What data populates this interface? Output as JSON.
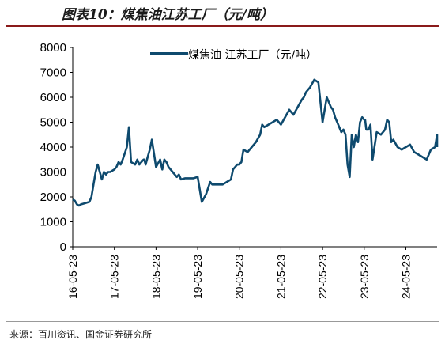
{
  "figure_title": "图表10：煤焦油江苏工厂（元/吨）",
  "source": "来源：百川资讯、国金证券研究所",
  "colors": {
    "line": "#0e4a6e",
    "rule": "#8a1a1a"
  },
  "chart_data": {
    "type": "line",
    "title": "",
    "xlabel": "",
    "ylabel": "",
    "ylim": [
      0,
      8000
    ],
    "yticks": [
      0,
      1000,
      2000,
      3000,
      4000,
      5000,
      6000,
      7000,
      8000
    ],
    "xticks": [
      "16-05-23",
      "17-05-23",
      "18-05-23",
      "19-05-23",
      "20-05-23",
      "21-05-23",
      "22-05-23",
      "23-05-23",
      "24-05-23"
    ],
    "grid": false,
    "legend": "top",
    "series": [
      {
        "name": "煤焦油 江苏工厂（元/吨）",
        "x": [
          2016.0,
          2016.05,
          2016.1,
          2016.15,
          2016.2,
          2016.3,
          2016.4,
          2016.45,
          2016.5,
          2016.55,
          2016.6,
          2016.7,
          2016.75,
          2016.8,
          2016.85,
          2016.9,
          2017.0,
          2017.05,
          2017.1,
          2017.15,
          2017.2,
          2017.3,
          2017.35,
          2017.4,
          2017.5,
          2017.55,
          2017.6,
          2017.65,
          2017.7,
          2017.72,
          2017.75,
          2017.8,
          2017.85,
          2017.9,
          2018.0,
          2018.1,
          2018.15,
          2018.2,
          2018.25,
          2018.3,
          2018.35,
          2018.4,
          2018.45,
          2018.5,
          2018.55,
          2018.6,
          2018.7,
          2018.8,
          2018.9,
          2019.0,
          2019.1,
          2019.2,
          2019.3,
          2019.35,
          2019.4,
          2019.5,
          2019.6,
          2019.7,
          2019.8,
          2019.85,
          2019.9,
          2019.95,
          2020.0,
          2020.05,
          2020.1,
          2020.2,
          2020.3,
          2020.4,
          2020.5,
          2020.55,
          2020.6,
          2020.7,
          2020.8,
          2020.9,
          2020.95,
          2021.0,
          2021.1,
          2021.2,
          2021.3,
          2021.4,
          2021.5,
          2021.55,
          2021.6,
          2021.7,
          2021.8,
          2021.9,
          2022.0,
          2022.1,
          2022.2,
          2022.25,
          2022.3,
          2022.35,
          2022.4,
          2022.45,
          2022.5,
          2022.55,
          2022.6,
          2022.65,
          2022.7,
          2022.75,
          2022.8,
          2022.85,
          2022.9,
          2022.95,
          2023.0,
          2023.02,
          2023.05,
          2023.1,
          2023.15,
          2023.2,
          2023.3,
          2023.4,
          2023.5,
          2023.55,
          2023.6,
          2023.65,
          2023.7,
          2023.8,
          2023.9,
          2024.0,
          2024.1,
          2024.2,
          2024.3,
          2024.4,
          2024.5,
          2024.6,
          2024.7,
          2024.8,
          2024.9,
          2025.0
        ],
        "values": [
          1900,
          1850,
          1700,
          1650,
          1700,
          1750,
          1800,
          2000,
          2500,
          3000,
          3300,
          2700,
          3000,
          2900,
          3000,
          3000,
          3100,
          3200,
          3400,
          3300,
          3500,
          4000,
          4800,
          3400,
          3300,
          3500,
          3300,
          3400,
          3500,
          3500,
          3300,
          3600,
          3900,
          4300,
          3200,
          3500,
          3100,
          3500,
          3400,
          3200,
          3100,
          3000,
          2900,
          2800,
          2900,
          2700,
          2750,
          2750,
          2750,
          2800,
          1800,
          2100,
          2600,
          2500,
          2500,
          2500,
          2500,
          2600,
          2700,
          3100,
          3200,
          3300,
          3300,
          3400,
          3900,
          3800,
          4000,
          4200,
          4500,
          4900,
          4800,
          4900,
          5000,
          5100,
          5000,
          4900,
          5200,
          5500,
          5300,
          5600,
          5900,
          6000,
          6200,
          6400,
          6700,
          6600,
          5000,
          6000,
          5600,
          5500,
          5200,
          5000,
          4800,
          4600,
          4700,
          4500,
          3300,
          2800,
          4500,
          4000,
          4500,
          4200,
          5000,
          5200,
          5100,
          5100,
          4700,
          4700,
          4900,
          3500,
          4600,
          4500,
          4700,
          5100,
          5000,
          4200,
          4300,
          4000,
          3900,
          4000,
          4100,
          3800,
          3700,
          3600,
          3500,
          3900,
          4000,
          4500,
          4000,
          4000
        ]
      }
    ]
  }
}
